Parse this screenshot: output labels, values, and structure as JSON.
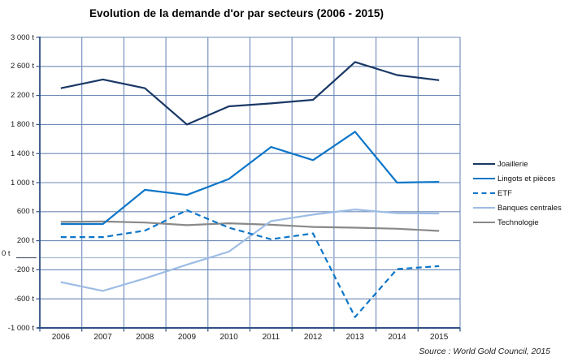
{
  "title": "Evolution de la demande d'or par secteurs (2006 - 2015)",
  "source": "Source : World Gold Council, 2015",
  "chart_data": {
    "type": "line",
    "x": [
      2006,
      2007,
      2008,
      2009,
      2010,
      2011,
      2012,
      2013,
      2014,
      2015
    ],
    "x_labels": [
      "2006",
      "2007",
      "2008",
      "2009",
      "2010",
      "2011",
      "2012",
      "2013",
      "2014",
      "2015"
    ],
    "series": [
      {
        "id": "joaillerie",
        "name": "Joaillerie",
        "color": "#1A3866",
        "dash": false,
        "values": [
          2300,
          2420,
          2300,
          1800,
          2050,
          2090,
          2140,
          2660,
          2480,
          2410
        ]
      },
      {
        "id": "lingots",
        "name": "Lingots et pièces",
        "color": "#0E76C8",
        "dash": false,
        "values": [
          430,
          430,
          900,
          830,
          1050,
          1490,
          1310,
          1700,
          1000,
          1010
        ]
      },
      {
        "id": "etf",
        "name": "ETF",
        "color": "#0E76C8",
        "dash": true,
        "values": [
          250,
          250,
          340,
          620,
          380,
          220,
          300,
          -850,
          -190,
          -150
        ]
      },
      {
        "id": "banques-centrales",
        "name": "Banques centrales",
        "color": "#9DBCE4",
        "dash": false,
        "values": [
          -370,
          -490,
          -320,
          -130,
          50,
          470,
          560,
          630,
          580,
          575
        ]
      },
      {
        "id": "technologie",
        "name": "Technologie",
        "color": "#898989",
        "dash": false,
        "values": [
          460,
          465,
          450,
          415,
          440,
          420,
          390,
          380,
          365,
          335
        ]
      }
    ],
    "ylim": [
      -1000,
      3000
    ],
    "ytick_step": 400,
    "y_axis_labels": [
      "3 000 t",
      "2 600 t",
      "2 200 t",
      "1 800 t",
      "1 400 t",
      "1 000 t",
      "600 t",
      "200 t",
      "-200 t",
      "-600 t",
      "-1 000 t"
    ],
    "zero_label": "0 t",
    "unit": "t",
    "grid": true,
    "legend_position": "right"
  },
  "colors": {
    "gridline": "#6D89B8",
    "axis": "#2F5086",
    "zero_line": "#A6BBD9",
    "background": "#FFFFFF"
  }
}
